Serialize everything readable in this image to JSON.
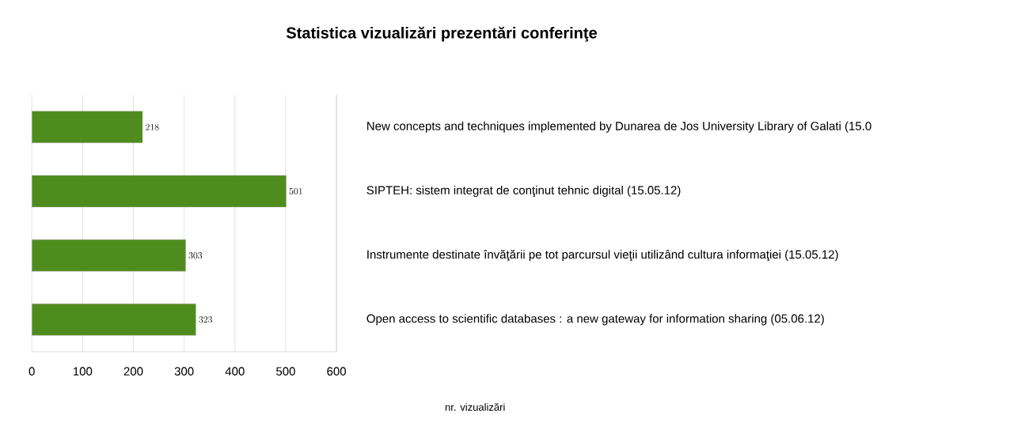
{
  "chart_data": {
    "type": "bar",
    "orientation": "horizontal",
    "title": "Statistica vizualizări prezentări conferinţe",
    "xlabel": "nr. vizualizări",
    "categories": [
      "New concepts and techniques implemented by  Dunarea de Jos University Library of Galati (15.0",
      "SIPTEH: sistem integrat de conţinut tehnic digital (15.05.12)",
      "Instrumente destinate învăţării pe tot parcursul vieţii utilizând cultura informaţiei (15.05.12)",
      "Open access to scientific databases : a new gateway for information sharing (05.06.12)"
    ],
    "values": [
      218,
      501,
      303,
      323
    ],
    "color": "#4f8c1e",
    "data_labels": true,
    "xlim": [
      0,
      600
    ],
    "xticks": [
      0,
      100,
      200,
      300,
      400,
      500,
      600
    ],
    "grid": "x"
  }
}
